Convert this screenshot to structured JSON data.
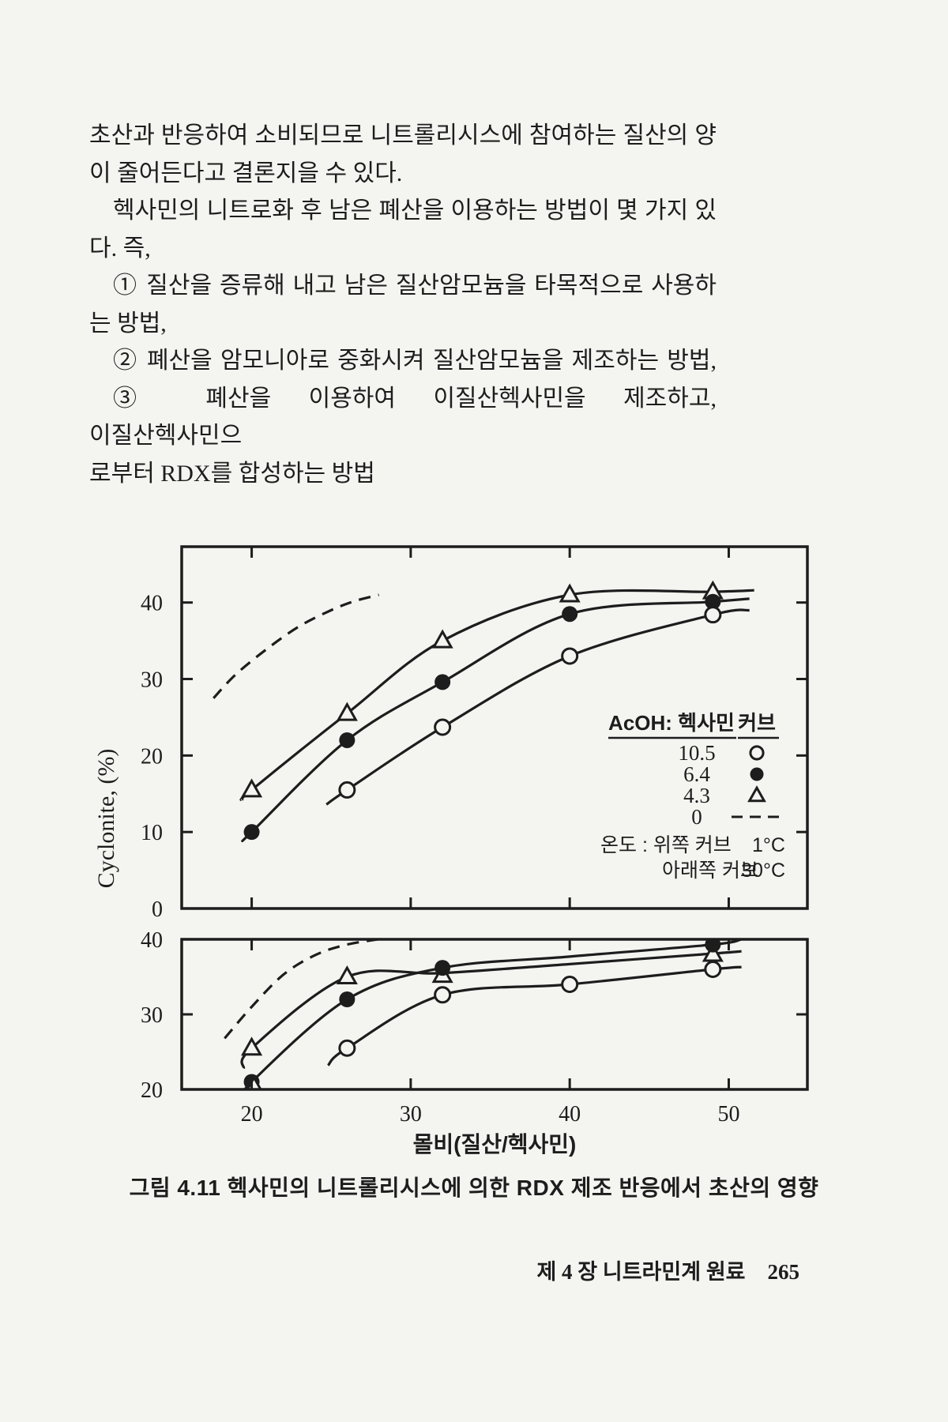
{
  "page": {
    "background": "#f4f4f1",
    "ink": "#1d1d1d",
    "body_lines": [
      "초산과 반응하여 소비되므로 니트롤리시스에 참여하는 질산의 양",
      "이 줄어든다고 결론지을 수 있다.",
      "헥사민의 니트로화 후 남은 폐산을 이용하는 방법이 몇 가지 있",
      "다. 즉,",
      "① 질산을 증류해 내고 남은 질산암모늄을 타목적으로 사용하",
      "는 방법,",
      "② 폐산을 암모니아로 중화시켜 질산암모늄을 제조하는 방법,",
      "③ 폐산을 이용하여 이질산헥사민을 제조하고, 이질산헥사민으",
      "로부터 RDX를 합성하는 방법"
    ],
    "caption": "그림 4.11   헥사민의 니트롤리시스에 의한 RDX 제조 반응에서 초산의 영향",
    "footer": {
      "chapter": "제 4 장   니트라민계 원료",
      "page_number": "265"
    }
  },
  "chart_data": {
    "type": "line",
    "figure_label": "그림 4.11",
    "title": "헥사민의 니트롤리시스에 의한 RDX 제조 반응에서 초산의 영향",
    "xlabel": "몰비(질산/헥사민)",
    "ylabel": "Cyclonite, (%)",
    "x_ticks": [
      20,
      30,
      40,
      50
    ],
    "xlim": [
      15.6,
      54.9
    ],
    "legend": {
      "col1_header": "AcOH: 헥사민",
      "col2_header": "커브",
      "rows": [
        {
          "ratio": "10.5",
          "marker": "open-circle"
        },
        {
          "ratio": "6.4",
          "marker": "filled-circle"
        },
        {
          "ratio": "4.3",
          "marker": "open-triangle"
        },
        {
          "ratio": "0",
          "marker": "dashed"
        }
      ],
      "temp_note": {
        "label": "온도 : 위쪽 커브",
        "top_value": "1°C",
        "line2_label": "아래쪽 커브",
        "bottom_value": "30°C"
      }
    },
    "panels": [
      {
        "name": "top",
        "temperature": "1°C",
        "ylim": [
          0,
          47.3
        ],
        "y_ticks": [
          0,
          10,
          20,
          30,
          40
        ],
        "series": [
          {
            "acoh_ratio": "0",
            "marker": "dashed",
            "points": [],
            "curve": [
              [
                17.6,
                27.5
              ],
              [
                19,
                30.6
              ],
              [
                21,
                34
              ],
              [
                23,
                36.9
              ],
              [
                25,
                39
              ],
              [
                26.5,
                40.2
              ],
              [
                28,
                41
              ]
            ]
          },
          {
            "acoh_ratio": "4.3",
            "marker": "open-triangle",
            "points": [
              [
                20,
                15.5
              ],
              [
                26,
                25.5
              ],
              [
                32,
                35
              ],
              [
                40,
                41
              ],
              [
                49,
                41.4
              ]
            ],
            "curve": [
              [
                19.4,
                14.2
              ],
              [
                20,
                15.5
              ],
              [
                26,
                25.5
              ],
              [
                32,
                35
              ],
              [
                40,
                41
              ],
              [
                49,
                41.4
              ],
              [
                51.6,
                41.6
              ]
            ]
          },
          {
            "acoh_ratio": "6.4",
            "marker": "filled-circle",
            "points": [
              [
                20,
                10
              ],
              [
                26,
                22
              ],
              [
                32,
                29.6
              ],
              [
                40,
                38.5
              ],
              [
                49,
                40.1
              ]
            ],
            "curve": [
              [
                19.6,
                9.2
              ],
              [
                20,
                10
              ],
              [
                26,
                22
              ],
              [
                32,
                29.6
              ],
              [
                40,
                38.5
              ],
              [
                49,
                40.1
              ],
              [
                51.3,
                40.5
              ]
            ]
          },
          {
            "acoh_ratio": "10.5",
            "marker": "open-circle",
            "points": [
              [
                26,
                15.5
              ],
              [
                32,
                23.7
              ],
              [
                40,
                33
              ],
              [
                49,
                38.4
              ]
            ],
            "curve": [
              [
                24.7,
                13.6
              ],
              [
                26,
                15.5
              ],
              [
                32,
                23.7
              ],
              [
                40,
                33
              ],
              [
                49,
                38.4
              ],
              [
                51.3,
                39
              ]
            ]
          }
        ],
        "stray_points": []
      },
      {
        "name": "bottom",
        "temperature": "30°C",
        "ylim": [
          20,
          40
        ],
        "y_ticks": [
          20,
          30,
          40
        ],
        "series": [
          {
            "acoh_ratio": "0",
            "marker": "dashed",
            "points": [],
            "curve": [
              [
                18.3,
                26.8
              ],
              [
                20,
                31
              ],
              [
                22,
                35.3
              ],
              [
                24,
                37.9
              ],
              [
                26,
                39.3
              ],
              [
                28.6,
                40.2
              ]
            ]
          },
          {
            "acoh_ratio": "4.3",
            "marker": "open-triangle",
            "points": [
              [
                20,
                25.5
              ],
              [
                26,
                35
              ],
              [
                32,
                35.2
              ],
              [
                49,
                38
              ]
            ],
            "curve": [
              [
                19.5,
                22.8
              ],
              [
                20,
                25.5
              ],
              [
                26,
                35
              ],
              [
                32,
                35.5
              ],
              [
                40,
                36.7
              ],
              [
                49,
                38.1
              ],
              [
                50.8,
                38.4
              ]
            ]
          },
          {
            "acoh_ratio": "6.4",
            "marker": "filled-circle",
            "points": [
              [
                20,
                21
              ],
              [
                26,
                32
              ],
              [
                32,
                36.2
              ],
              [
                49,
                39.3
              ]
            ],
            "curve": [
              [
                19.8,
                19.5
              ],
              [
                20,
                21
              ],
              [
                26,
                32
              ],
              [
                32,
                36.2
              ],
              [
                40,
                37.7
              ],
              [
                49,
                39.3
              ],
              [
                50.8,
                40
              ]
            ]
          },
          {
            "acoh_ratio": "10.5",
            "marker": "open-circle",
            "points": [
              [
                26,
                25.5
              ],
              [
                32,
                32.6
              ],
              [
                40,
                34
              ],
              [
                49,
                36
              ]
            ],
            "curve": [
              [
                24.8,
                23.2
              ],
              [
                26,
                25.5
              ],
              [
                32,
                32.6
              ],
              [
                40,
                34
              ],
              [
                49,
                36
              ],
              [
                50.8,
                36.3
              ]
            ]
          }
        ],
        "stray_points": [
          {
            "marker": "open-triangle",
            "point": [
              20.15,
              20.35
            ]
          }
        ]
      }
    ]
  }
}
